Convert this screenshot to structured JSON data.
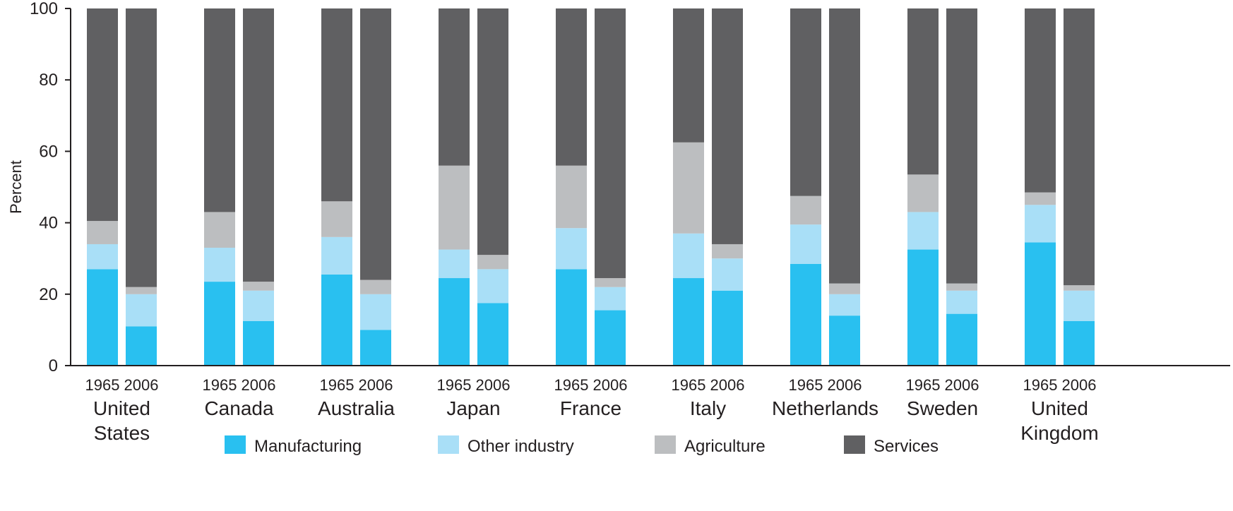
{
  "chart_data": {
    "type": "bar",
    "stacked": true,
    "title": "",
    "xlabel": "",
    "ylabel": "Percent",
    "ylim": [
      0,
      100
    ],
    "yticks": [
      "0",
      "20",
      "40",
      "60",
      "80",
      "100"
    ],
    "years": [
      "1965",
      "2006"
    ],
    "countries": [
      {
        "label": [
          "United",
          "States"
        ]
      },
      {
        "label": [
          "Canada"
        ]
      },
      {
        "label": [
          "Australia"
        ]
      },
      {
        "label": [
          "Japan"
        ]
      },
      {
        "label": [
          "France"
        ]
      },
      {
        "label": [
          "Italy"
        ]
      },
      {
        "label": [
          "Netherlands"
        ]
      },
      {
        "label": [
          "Sweden"
        ]
      },
      {
        "label": [
          "United",
          "Kingdom"
        ]
      }
    ],
    "series": [
      {
        "name": "Manufacturing",
        "color": "#29c0f0",
        "values": [
          [
            27,
            11
          ],
          [
            23.5,
            12.5
          ],
          [
            25.5,
            10
          ],
          [
            24.5,
            17.5
          ],
          [
            27,
            15.5
          ],
          [
            24.5,
            21
          ],
          [
            28.5,
            14
          ],
          [
            32.5,
            14.5
          ],
          [
            34.5,
            12.5
          ]
        ]
      },
      {
        "name": "Other industry",
        "color": "#a9dff7",
        "values": [
          [
            7,
            9
          ],
          [
            9.5,
            8.5
          ],
          [
            10.5,
            10
          ],
          [
            8,
            9.5
          ],
          [
            11.5,
            6.5
          ],
          [
            12.5,
            9
          ],
          [
            11,
            6
          ],
          [
            10.5,
            6.5
          ],
          [
            10.5,
            8.5
          ]
        ]
      },
      {
        "name": "Agriculture",
        "color": "#bcbec0",
        "values": [
          [
            6.5,
            2
          ],
          [
            10,
            2.5
          ],
          [
            10,
            4
          ],
          [
            23.5,
            4
          ],
          [
            17.5,
            2.5
          ],
          [
            25.5,
            4
          ],
          [
            8,
            3
          ],
          [
            10.5,
            2
          ],
          [
            3.5,
            1.5
          ]
        ]
      },
      {
        "name": "Services",
        "color": "#606062",
        "values": [
          [
            59.5,
            78
          ],
          [
            57,
            76.5
          ],
          [
            54,
            76
          ],
          [
            44,
            69
          ],
          [
            44,
            75.5
          ],
          [
            37.5,
            66
          ],
          [
            52.5,
            77
          ],
          [
            46.5,
            77
          ],
          [
            51.5,
            77.5
          ]
        ]
      }
    ],
    "legend": {
      "position": "bottom"
    },
    "grid": false
  }
}
